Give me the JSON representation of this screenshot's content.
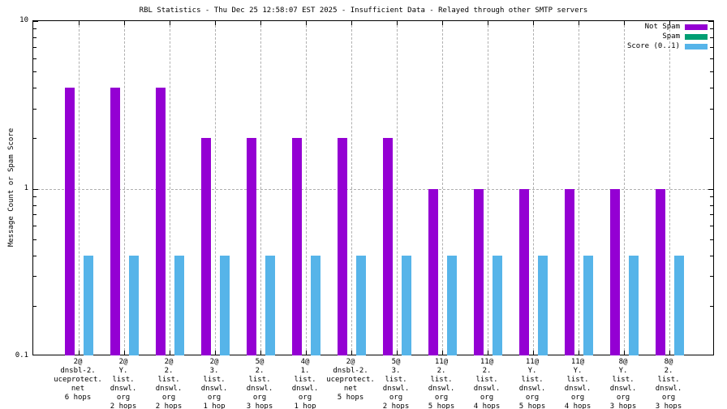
{
  "title": "RBL Statistics - Thu Dec 25 12:58:07 EST 2025 - Insufficient Data - Relayed through other SMTP servers",
  "ylabel": "Message Count or Spam Score",
  "colors": {
    "not_spam": "#9400d3",
    "spam": "#009e73",
    "score": "#56b4e9",
    "axis": "#000000",
    "grid": "#b0b0b0",
    "background": "#ffffff"
  },
  "legend": {
    "position": "top-right",
    "items": [
      {
        "label": "Not Spam",
        "color": "#9400d3"
      },
      {
        "label": "Spam",
        "color": "#009e73"
      },
      {
        "label": "Score (0..1)",
        "color": "#56b4e9"
      }
    ]
  },
  "chart_data": {
    "type": "bar",
    "y_scale": "log",
    "ylim": [
      0.1,
      10
    ],
    "ytick_values": [
      10,
      1,
      0.1
    ],
    "ytick_labels": [
      "10",
      "1",
      "0.1"
    ],
    "grid": true,
    "legend_position": "top-right",
    "categories": [
      "2@\ndnsbl-2.\nuceprotect.\nnet\n6 hops",
      "2@\nY.\nlist.\ndnswl.\norg\n2 hops",
      "2@\n2.\nlist.\ndnswl.\norg\n2 hops",
      "2@\n3.\nlist.\ndnswl.\norg\n1 hop",
      "5@\n2.\nlist.\ndnswl.\norg\n3 hops",
      "4@\n1.\nlist.\ndnswl.\norg\n1 hop",
      "2@\ndnsbl-2.\nuceprotect.\nnet\n5 hops",
      "5@\n3.\nlist.\ndnswl.\norg\n2 hops",
      "11@\n2.\nlist.\ndnswl.\norg\n5 hops",
      "11@\n2.\nlist.\ndnswl.\norg\n4 hops",
      "11@\nY.\nlist.\ndnswl.\norg\n5 hops",
      "11@\nY.\nlist.\ndnswl.\norg\n4 hops",
      "8@\nY.\nlist.\ndnswl.\norg\n3 hops",
      "8@\n2.\nlist.\ndnswl.\norg\n3 hops"
    ],
    "series": [
      {
        "name": "Not Spam",
        "color": "#9400d3",
        "values": [
          4,
          4,
          4,
          2,
          2,
          2,
          2,
          2,
          1,
          1,
          1,
          1,
          1,
          1
        ]
      },
      {
        "name": "Spam",
        "color": "#009e73",
        "values": [
          0,
          0,
          0,
          0,
          0,
          0,
          0,
          0,
          0,
          0,
          0,
          0,
          0,
          0
        ]
      },
      {
        "name": "Score (0..1)",
        "color": "#56b4e9",
        "values": [
          0.4,
          0.4,
          0.4,
          0.4,
          0.4,
          0.4,
          0.4,
          0.4,
          0.4,
          0.4,
          0.4,
          0.4,
          0.4,
          0.4
        ]
      }
    ]
  }
}
